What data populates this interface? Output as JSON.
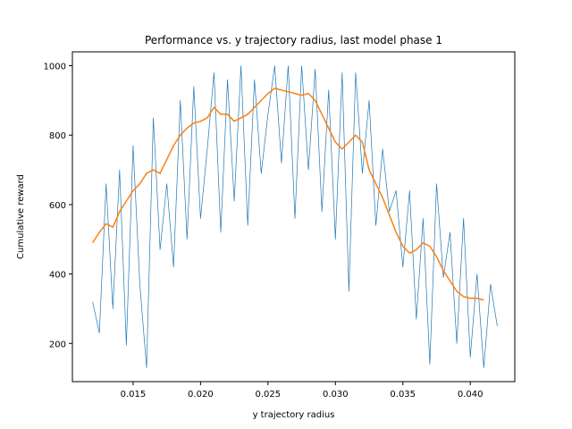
{
  "chart_data": {
    "type": "line",
    "title": "Performance vs. y trajectory radius, last model phase 1",
    "xlabel": "y trajectory radius",
    "ylabel": "Cumulative reward",
    "xlim": [
      0.0105,
      0.0433
    ],
    "ylim": [
      90,
      1040
    ],
    "xticks": [
      0.015,
      0.02,
      0.025,
      0.03,
      0.035,
      0.04
    ],
    "xtick_labels": [
      "0.015",
      "0.020",
      "0.025",
      "0.030",
      "0.035",
      "0.040"
    ],
    "yticks": [
      200,
      400,
      600,
      800,
      1000
    ],
    "ytick_labels": [
      "200",
      "400",
      "600",
      "800",
      "1000"
    ],
    "grid": false,
    "legend": "none",
    "raw_x_range": [
      0.012,
      0.042
    ],
    "series": [
      {
        "color": "#1f77b4",
        "style": "thin",
        "x": [
          0.012,
          0.0125,
          0.013,
          0.0135,
          0.014,
          0.0145,
          0.015,
          0.0155,
          0.016,
          0.0165,
          0.017,
          0.0175,
          0.018,
          0.0185,
          0.019,
          0.0195,
          0.02,
          0.0205,
          0.021,
          0.0215,
          0.022,
          0.0225,
          0.023,
          0.0235,
          0.024,
          0.0245,
          0.025,
          0.0255,
          0.026,
          0.0265,
          0.027,
          0.0275,
          0.028,
          0.0285,
          0.029,
          0.0295,
          0.03,
          0.0305,
          0.031,
          0.0315,
          0.032,
          0.0325,
          0.033,
          0.0335,
          0.034,
          0.0345,
          0.035,
          0.0355,
          0.036,
          0.0365,
          0.037,
          0.0375,
          0.038,
          0.0385,
          0.039,
          0.0395,
          0.04,
          0.0405,
          0.041,
          0.0415,
          0.042
        ],
        "y": [
          320,
          230,
          660,
          300,
          700,
          195,
          770,
          370,
          130,
          850,
          470,
          660,
          420,
          900,
          500,
          940,
          560,
          760,
          980,
          520,
          960,
          610,
          1000,
          540,
          960,
          690,
          860,
          1000,
          720,
          1000,
          560,
          1000,
          700,
          990,
          580,
          930,
          500,
          980,
          350,
          980,
          690,
          900,
          540,
          760,
          580,
          640,
          420,
          640,
          270,
          560,
          140,
          660,
          390,
          520,
          200,
          560,
          160,
          400,
          130,
          370,
          250
        ]
      },
      {
        "color": "#ff7f0e",
        "style": "smoothed",
        "x": [
          0.012,
          0.0125,
          0.013,
          0.0135,
          0.014,
          0.0145,
          0.015,
          0.0155,
          0.016,
          0.0165,
          0.017,
          0.0175,
          0.018,
          0.0185,
          0.019,
          0.0195,
          0.02,
          0.0205,
          0.021,
          0.0215,
          0.022,
          0.0225,
          0.023,
          0.0235,
          0.024,
          0.0245,
          0.025,
          0.0255,
          0.026,
          0.0265,
          0.027,
          0.0275,
          0.028,
          0.0285,
          0.029,
          0.0295,
          0.03,
          0.0305,
          0.031,
          0.0315,
          0.032,
          0.0325,
          0.033,
          0.0335,
          0.034,
          0.0345,
          0.035,
          0.0355,
          0.036,
          0.0365,
          0.037,
          0.0375,
          0.038,
          0.0385,
          0.039,
          0.0395,
          0.04,
          0.0405,
          0.041
        ],
        "y": [
          490,
          520,
          545,
          535,
          580,
          610,
          640,
          660,
          690,
          700,
          690,
          730,
          770,
          800,
          820,
          835,
          840,
          850,
          880,
          860,
          860,
          840,
          850,
          860,
          880,
          900,
          920,
          935,
          930,
          925,
          920,
          915,
          920,
          900,
          860,
          820,
          780,
          760,
          780,
          800,
          780,
          700,
          660,
          620,
          570,
          520,
          480,
          460,
          470,
          490,
          480,
          450,
          410,
          380,
          350,
          335,
          330,
          330,
          325
        ]
      }
    ]
  }
}
